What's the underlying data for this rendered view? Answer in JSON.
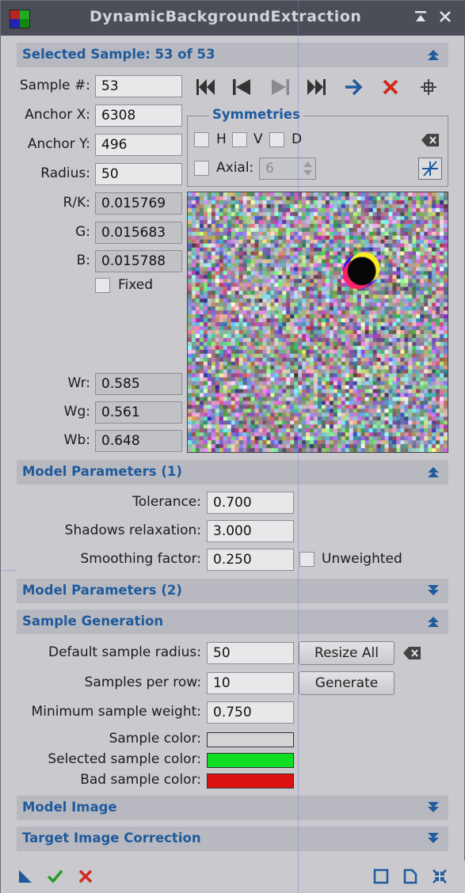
{
  "window": {
    "title": "DynamicBackgroundExtraction"
  },
  "selected_sample": {
    "header": "Selected Sample: 53 of 53",
    "sample_label": "Sample #:",
    "sample_value": "53",
    "anchor_x_label": "Anchor X:",
    "anchor_x_value": "6308",
    "anchor_y_label": "Anchor Y:",
    "anchor_y_value": "496",
    "radius_label": "Radius:",
    "radius_value": "50",
    "rk_label": "R/K:",
    "rk_value": "0.015769",
    "g_label": "G:",
    "g_value": "0.015683",
    "b_label": "B:",
    "b_value": "0.015788",
    "fixed_label": "Fixed",
    "wr_label": "Wr:",
    "wr_value": "0.585",
    "wg_label": "Wg:",
    "wg_value": "0.561",
    "wb_label": "Wb:",
    "wb_value": "0.648",
    "symmetries": {
      "title": "Symmetries",
      "h_label": "H",
      "v_label": "V",
      "d_label": "D",
      "axial_label": "Axial:",
      "axial_value": "6"
    }
  },
  "model_params_1": {
    "header": "Model Parameters (1)",
    "tolerance_label": "Tolerance:",
    "tolerance_value": "0.700",
    "shadows_label": "Shadows relaxation:",
    "shadows_value": "3.000",
    "smoothing_label": "Smoothing factor:",
    "smoothing_value": "0.250",
    "unweighted_label": "Unweighted"
  },
  "model_params_2": {
    "header": "Model Parameters (2)"
  },
  "sample_generation": {
    "header": "Sample Generation",
    "default_radius_label": "Default sample radius:",
    "default_radius_value": "50",
    "resize_all_label": "Resize All",
    "samples_per_row_label": "Samples per row:",
    "samples_per_row_value": "10",
    "generate_label": "Generate",
    "min_weight_label": "Minimum sample weight:",
    "min_weight_value": "0.750",
    "sample_color_label": "Sample color:",
    "sample_color": "#d4d4d6",
    "selected_color_label": "Selected sample color:",
    "selected_color": "#11dd22",
    "bad_color_label": "Bad sample color:",
    "bad_color": "#dd1111"
  },
  "model_image": {
    "header": "Model Image"
  },
  "target_correction": {
    "header": "Target Image Correction"
  },
  "colors": {
    "accent": "#1f5a9c",
    "section_bg": "#b8b9c0",
    "panel_bg": "#c9c9ce"
  }
}
